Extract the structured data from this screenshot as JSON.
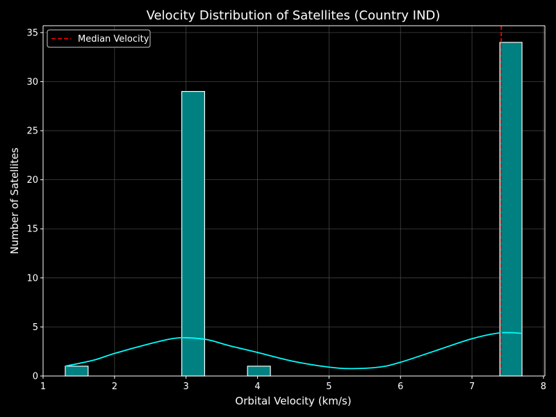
{
  "chart_data": {
    "type": "bar",
    "title": "Velocity Distribution of Satellites (Country IND)",
    "xlabel": "Orbital Velocity (km/s)",
    "ylabel": "Number of Satellites",
    "xlim": [
      1,
      8.02
    ],
    "ylim": [
      0,
      35.7
    ],
    "xticks": [
      1,
      2,
      3,
      4,
      5,
      6,
      7,
      8
    ],
    "yticks": [
      0,
      5,
      10,
      15,
      20,
      25,
      30,
      35
    ],
    "grid": true,
    "legend": {
      "placement": "top-left",
      "entries": [
        "Median Velocity"
      ]
    },
    "bins": [
      {
        "x0": 1.31,
        "x1": 1.63,
        "count": 1
      },
      {
        "x0": 2.94,
        "x1": 3.26,
        "count": 29
      },
      {
        "x0": 3.86,
        "x1": 4.18,
        "count": 1
      },
      {
        "x0": 7.39,
        "x1": 7.7,
        "count": 34
      }
    ],
    "kde": {
      "x": [
        1.31,
        1.7,
        2.0,
        2.5,
        2.8,
        3.0,
        3.3,
        3.6,
        4.0,
        4.5,
        5.0,
        5.3,
        5.7,
        6.0,
        6.5,
        7.0,
        7.4,
        7.7
      ],
      "y": [
        1.0,
        1.6,
        2.3,
        3.3,
        3.8,
        3.9,
        3.7,
        3.1,
        2.4,
        1.5,
        0.9,
        0.75,
        0.9,
        1.4,
        2.6,
        3.8,
        4.4,
        4.35
      ]
    },
    "median_velocity": 7.41,
    "colors": {
      "background": "#000000",
      "bar_fill": "#008080",
      "bar_edge": "#ffffff",
      "kde_line": "#00ffff",
      "median_line": "#ff0000",
      "grid": "#555555",
      "text": "#ffffff"
    }
  }
}
